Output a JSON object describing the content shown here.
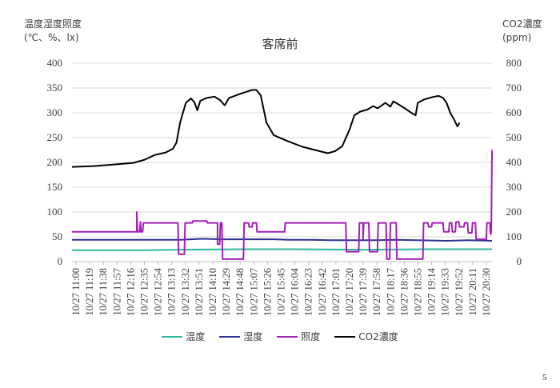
{
  "header": {
    "left_title_line1": "温度湿度照度",
    "left_title_line2": "(℃、%、lx)",
    "right_title_line1": "CO2濃度",
    "right_title_line2": "(ppm)",
    "chart_title": "客席前"
  },
  "page_number": "5",
  "chart_data": {
    "type": "line",
    "title": "客席前",
    "y_left_label": "温度湿度照度 (℃、%、lx)",
    "y_right_label": "CO2濃度 (ppm)",
    "y_left_range": [
      0,
      400
    ],
    "y_left_ticks": [
      "0",
      "50",
      "100",
      "150",
      "200",
      "250",
      "300",
      "350",
      "400"
    ],
    "y_right_range": [
      0,
      800
    ],
    "y_right_ticks": [
      "0",
      "100",
      "200",
      "300",
      "400",
      "500",
      "600",
      "700",
      "800"
    ],
    "x_tick_labels": [
      "10/27 11:00",
      "10/27 11:19",
      "10/27 11:38",
      "10/27 11:57",
      "10/27 12:16",
      "10/27 12:35",
      "10/27 12:54",
      "10/27 13:13",
      "10/27 13:32",
      "10/27 13:51",
      "10/27 14:10",
      "10/27 14:29",
      "10/27 14:48",
      "10/27 15:07",
      "10/27 15:26",
      "10/27 15:45",
      "10/27 16:04",
      "10/27 16:23",
      "10/27 16:42",
      "10/27 17:01",
      "10/27 17:20",
      "10/27 17:39",
      "10/27 17:58",
      "10/27 18:17",
      "10/27 18:36",
      "10/27 18:55",
      "10/27 19:14",
      "10/27 19:33",
      "10/27 19:52",
      "10/27 20:11",
      "10/27 20:30"
    ],
    "x_range_minutes": [
      0,
      583
    ],
    "grid": true,
    "legend_position": "bottom",
    "series": [
      {
        "name": "温度",
        "axis": "left",
        "color": "#2ab89a",
        "points": [
          [
            0,
            23
          ],
          [
            100,
            23
          ],
          [
            150,
            24
          ],
          [
            250,
            25
          ],
          [
            300,
            25
          ],
          [
            400,
            24
          ],
          [
            500,
            25
          ],
          [
            583,
            25
          ]
        ]
      },
      {
        "name": "湿度",
        "axis": "left",
        "color": "#2e3192",
        "points": [
          [
            0,
            44
          ],
          [
            60,
            44
          ],
          [
            120,
            44
          ],
          [
            150,
            44
          ],
          [
            180,
            46
          ],
          [
            210,
            45
          ],
          [
            240,
            45
          ],
          [
            280,
            45
          ],
          [
            300,
            44
          ],
          [
            330,
            44
          ],
          [
            360,
            43
          ],
          [
            400,
            43
          ],
          [
            420,
            43
          ],
          [
            450,
            44
          ],
          [
            480,
            43
          ],
          [
            520,
            42
          ],
          [
            550,
            43
          ],
          [
            583,
            42
          ]
        ]
      },
      {
        "name": "照度",
        "axis": "left",
        "color": "#a21fb8",
        "points": [
          [
            0,
            60
          ],
          [
            90,
            60
          ],
          [
            90,
            100
          ],
          [
            91,
            60
          ],
          [
            94,
            60
          ],
          [
            95,
            80
          ],
          [
            96,
            60
          ],
          [
            98,
            60
          ],
          [
            99,
            78
          ],
          [
            147,
            78
          ],
          [
            148,
            15
          ],
          [
            156,
            15
          ],
          [
            157,
            78
          ],
          [
            167,
            78
          ],
          [
            168,
            82
          ],
          [
            187,
            82
          ],
          [
            188,
            78
          ],
          [
            202,
            78
          ],
          [
            202,
            35
          ],
          [
            205,
            35
          ],
          [
            206,
            78
          ],
          [
            208,
            78
          ],
          [
            209,
            5
          ],
          [
            238,
            5
          ],
          [
            239,
            78
          ],
          [
            245,
            78
          ],
          [
            246,
            70
          ],
          [
            250,
            70
          ],
          [
            251,
            78
          ],
          [
            256,
            78
          ],
          [
            257,
            60
          ],
          [
            295,
            60
          ],
          [
            296,
            78
          ],
          [
            380,
            78
          ],
          [
            381,
            20
          ],
          [
            398,
            20
          ],
          [
            399,
            78
          ],
          [
            404,
            78
          ],
          [
            404,
            45
          ],
          [
            405,
            78
          ],
          [
            412,
            78
          ],
          [
            413,
            20
          ],
          [
            424,
            20
          ],
          [
            425,
            78
          ],
          [
            436,
            78
          ],
          [
            437,
            5
          ],
          [
            441,
            5
          ],
          [
            442,
            78
          ],
          [
            450,
            78
          ],
          [
            451,
            5
          ],
          [
            487,
            5
          ],
          [
            488,
            78
          ],
          [
            494,
            78
          ],
          [
            495,
            70
          ],
          [
            499,
            70
          ],
          [
            500,
            78
          ],
          [
            515,
            78
          ],
          [
            516,
            60
          ],
          [
            523,
            60
          ],
          [
            524,
            78
          ],
          [
            527,
            78
          ],
          [
            528,
            60
          ],
          [
            532,
            60
          ],
          [
            533,
            80
          ],
          [
            537,
            80
          ],
          [
            538,
            70
          ],
          [
            544,
            70
          ],
          [
            545,
            78
          ],
          [
            549,
            78
          ],
          [
            550,
            58
          ],
          [
            555,
            58
          ],
          [
            556,
            78
          ],
          [
            560,
            78
          ],
          [
            561,
            45
          ],
          [
            575,
            45
          ],
          [
            576,
            78
          ],
          [
            580,
            78
          ],
          [
            581,
            55
          ],
          [
            582,
            60
          ],
          [
            583,
            225
          ]
        ]
      },
      {
        "name": "CO2濃度",
        "axis": "right",
        "color": "#000000",
        "points": [
          [
            0,
            382
          ],
          [
            30,
            385
          ],
          [
            60,
            392
          ],
          [
            85,
            398
          ],
          [
            100,
            410
          ],
          [
            115,
            430
          ],
          [
            130,
            440
          ],
          [
            140,
            455
          ],
          [
            145,
            480
          ],
          [
            150,
            560
          ],
          [
            158,
            640
          ],
          [
            165,
            658
          ],
          [
            170,
            642
          ],
          [
            174,
            610
          ],
          [
            178,
            648
          ],
          [
            187,
            660
          ],
          [
            198,
            665
          ],
          [
            206,
            650
          ],
          [
            212,
            630
          ],
          [
            218,
            660
          ],
          [
            235,
            678
          ],
          [
            250,
            692
          ],
          [
            256,
            692
          ],
          [
            262,
            670
          ],
          [
            270,
            560
          ],
          [
            280,
            510
          ],
          [
            300,
            485
          ],
          [
            320,
            463
          ],
          [
            340,
            448
          ],
          [
            355,
            437
          ],
          [
            365,
            445
          ],
          [
            375,
            465
          ],
          [
            385,
            530
          ],
          [
            392,
            590
          ],
          [
            400,
            605
          ],
          [
            410,
            613
          ],
          [
            418,
            627
          ],
          [
            424,
            618
          ],
          [
            435,
            640
          ],
          [
            442,
            625
          ],
          [
            446,
            646
          ],
          [
            452,
            636
          ],
          [
            462,
            618
          ],
          [
            471,
            600
          ],
          [
            477,
            590
          ],
          [
            480,
            640
          ],
          [
            488,
            653
          ],
          [
            496,
            660
          ],
          [
            503,
            665
          ],
          [
            509,
            668
          ],
          [
            515,
            660
          ],
          [
            520,
            640
          ],
          [
            525,
            600
          ],
          [
            530,
            575
          ],
          [
            535,
            545
          ],
          [
            538,
            560
          ]
        ]
      }
    ]
  },
  "legend": [
    {
      "label": "温度",
      "color": "#2ab89a"
    },
    {
      "label": "湿度",
      "color": "#2e3192"
    },
    {
      "label": "照度",
      "color": "#a21fb8"
    },
    {
      "label": "CO2濃度",
      "color": "#000000"
    }
  ]
}
